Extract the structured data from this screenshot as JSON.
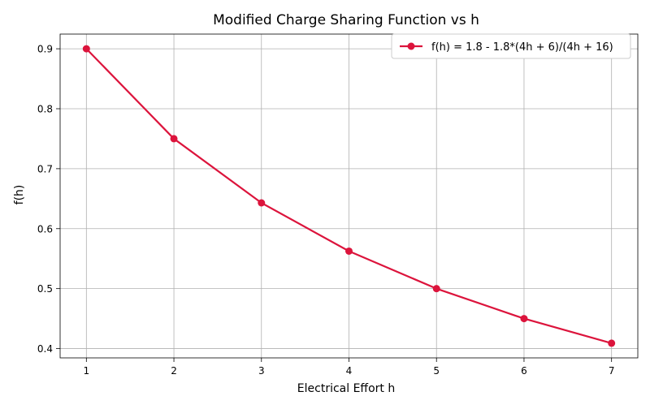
{
  "chart_data": {
    "type": "line",
    "title": "Modified Charge Sharing Function vs h",
    "xlabel": "Electrical Effort h",
    "ylabel": "f(h)",
    "x": [
      1,
      2,
      3,
      4,
      5,
      6,
      7
    ],
    "series": [
      {
        "name": "f(h) = 1.8 - 1.8*(4h + 6)/(4h + 16)",
        "values": [
          0.9,
          0.75,
          0.643,
          0.5625,
          0.5,
          0.45,
          0.409
        ],
        "color": "#dc143c",
        "marker": "circle"
      }
    ],
    "xlim": [
      0.7,
      7.3
    ],
    "ylim": [
      0.3845,
      0.9245
    ],
    "xticks": [
      1,
      2,
      3,
      4,
      5,
      6,
      7
    ],
    "yticks": [
      0.4,
      0.5,
      0.6,
      0.7,
      0.8,
      0.9
    ],
    "grid": true,
    "legend_position": "top-right"
  }
}
